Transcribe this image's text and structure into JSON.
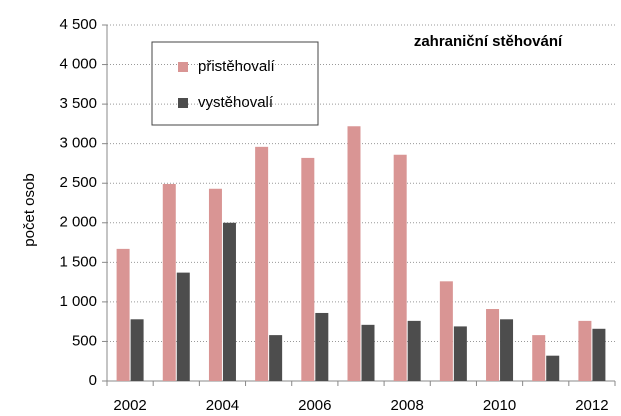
{
  "chart_data": {
    "type": "bar",
    "title": "zahraniční stěhování",
    "y_label": "počet osob",
    "categories": [
      "2002",
      null,
      "2004",
      null,
      "2006",
      null,
      "2008",
      null,
      "2010",
      null,
      "2012"
    ],
    "series": [
      {
        "name": "přistěhovalí",
        "color": "#d99594",
        "values": [
          1670,
          2490,
          2430,
          2960,
          2820,
          3220,
          2860,
          1260,
          910,
          580,
          760
        ]
      },
      {
        "name": "vystěhovalí",
        "color": "#4d4d4d",
        "values": [
          780,
          1370,
          2000,
          580,
          860,
          710,
          760,
          690,
          780,
          320,
          660
        ]
      }
    ],
    "ylim": [
      0,
      4500
    ],
    "yticks": [
      0,
      500,
      {
        "value": 1000,
        "label": "1 000"
      },
      {
        "value": 1500,
        "label": "1 500"
      },
      {
        "value": 2000,
        "label": "2 000"
      },
      {
        "value": 2500,
        "label": "2 500"
      },
      {
        "value": 3000,
        "label": "3 000"
      },
      {
        "value": 3500,
        "label": "3 500"
      },
      {
        "value": 4000,
        "label": "4 000"
      },
      {
        "value": 4500,
        "label": "4 500"
      }
    ],
    "grid": true,
    "legend": "upper left"
  }
}
